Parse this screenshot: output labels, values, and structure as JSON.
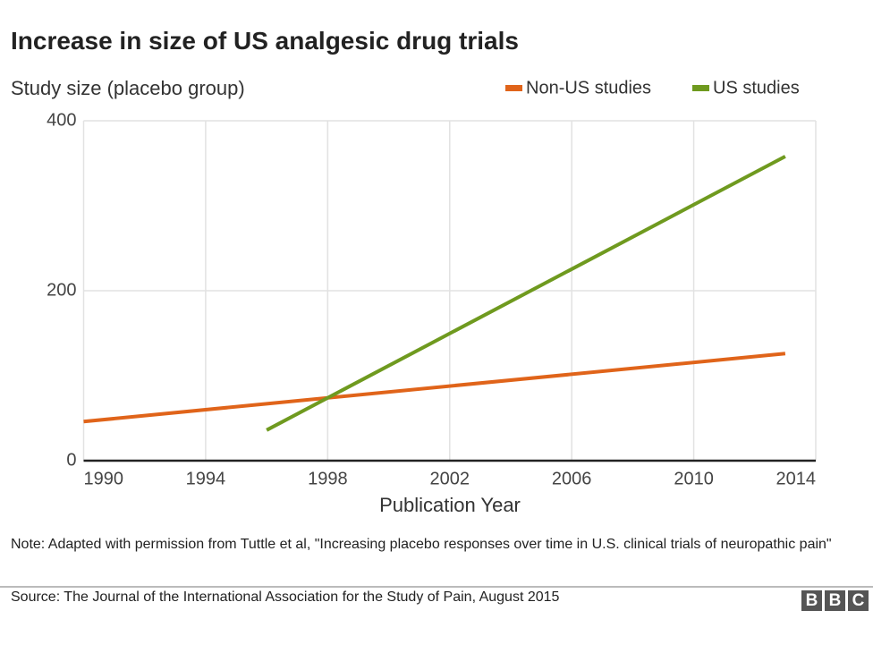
{
  "chart_data": {
    "type": "line",
    "title": "Increase in size of US analgesic drug trials",
    "y_label": "Study size (placebo group)",
    "x_label": "Publication Year",
    "x": [
      1990,
      1996,
      2013
    ],
    "series": [
      {
        "name": "Non-US studies",
        "color": "#e0641a",
        "values": [
          46,
          67,
          126
        ]
      },
      {
        "name": "US studies",
        "color": "#6f9a1f",
        "values": [
          null,
          36,
          358
        ]
      }
    ],
    "xlim": [
      1990,
      2014
    ],
    "xticks": [
      1990,
      1994,
      1998,
      2002,
      2006,
      2010,
      2014
    ],
    "ylim": [
      0,
      400
    ],
    "yticks": [
      0,
      200,
      400
    ],
    "grid": true,
    "legend": "top-right",
    "note": "Note: Adapted with permission from Tuttle et al, \"Increasing placebo responses over time in U.S. clinical trials of neuropathic pain\"",
    "source": "Source: The Journal of the International Association for the Study of Pain, August 2015",
    "logo": [
      "B",
      "B",
      "C"
    ]
  }
}
